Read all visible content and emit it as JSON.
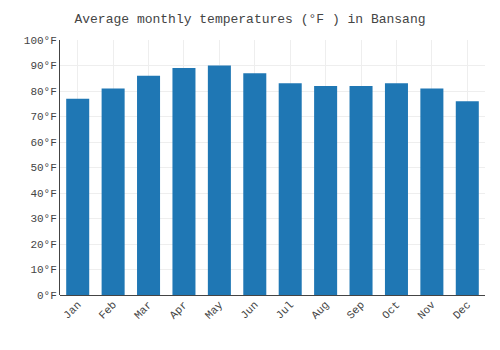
{
  "chart_data": {
    "type": "bar",
    "title": "Average monthly temperatures (°F ) in Bansang",
    "categories": [
      "Jan",
      "Feb",
      "Mar",
      "Apr",
      "May",
      "Jun",
      "Jul",
      "Aug",
      "Sep",
      "Oct",
      "Nov",
      "Dec"
    ],
    "values": [
      77,
      81,
      86,
      89,
      90,
      87,
      83,
      82,
      82,
      83,
      81,
      76
    ],
    "ylim": [
      0,
      100
    ],
    "yticks": [
      {
        "value": 0,
        "label": "0°F"
      },
      {
        "value": 10,
        "label": "10°F"
      },
      {
        "value": 20,
        "label": "20°F"
      },
      {
        "value": 30,
        "label": "30°F"
      },
      {
        "value": 40,
        "label": "40°F"
      },
      {
        "value": 50,
        "label": "50°F"
      },
      {
        "value": 60,
        "label": "60°F"
      },
      {
        "value": 70,
        "label": "70°F"
      },
      {
        "value": 80,
        "label": "80°F"
      },
      {
        "value": 90,
        "label": "90°F"
      },
      {
        "value": 100,
        "label": "100°F"
      }
    ],
    "grid": true
  }
}
